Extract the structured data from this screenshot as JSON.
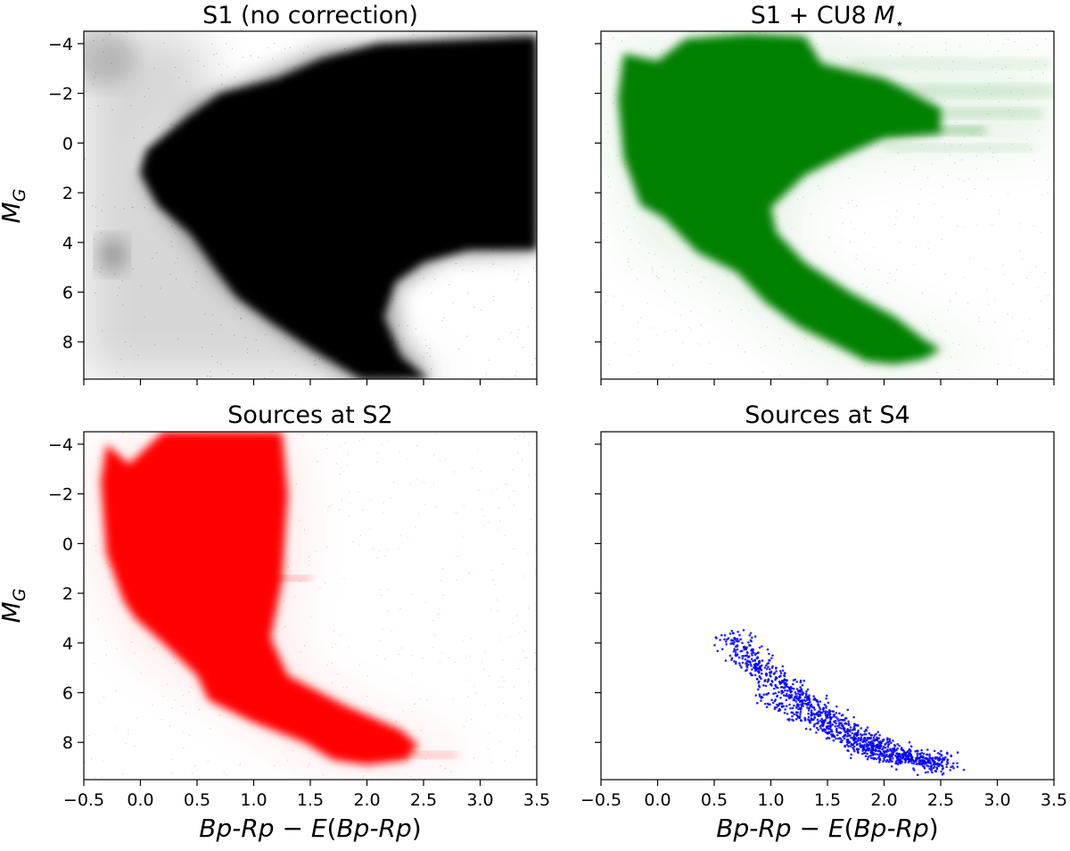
{
  "chart_data": [
    {
      "type": "scatter",
      "title": "S1 (no correction)",
      "ylabel": "M_G",
      "xlabel": "",
      "xlim": [
        -0.5,
        3.5
      ],
      "ylim": [
        9.5,
        -4.5
      ],
      "xticks": [
        "−0.5",
        "0.0",
        "0.5",
        "1.0",
        "1.5",
        "2.0",
        "2.5",
        "3.0",
        "3.5"
      ],
      "yticks": [
        "−4",
        "−2",
        "0",
        "2",
        "4",
        "6",
        "8"
      ],
      "show_xticklabels": false,
      "show_yticklabels": true,
      "color": "#000000",
      "grid": false,
      "density": {
        "halo": [
          [
            -0.5,
            -4.5
          ],
          [
            0.5,
            -4.5
          ],
          [
            0.6,
            -3.2
          ],
          [
            0.6,
            -1.5
          ],
          [
            0.3,
            -0.5
          ],
          [
            0.1,
            0.5
          ],
          [
            0.1,
            1.6
          ],
          [
            0.4,
            2.4
          ],
          [
            0.65,
            3.4
          ],
          [
            0.85,
            4.8
          ],
          [
            1.05,
            5.8
          ],
          [
            1.35,
            6.6
          ],
          [
            1.9,
            8.0
          ],
          [
            2.5,
            9.0
          ],
          [
            2.7,
            9.5
          ],
          [
            -0.5,
            9.5
          ]
        ],
        "core": [
          [
            0.4,
            -1.0
          ],
          [
            0.7,
            -2.0
          ],
          [
            1.2,
            -2.6
          ],
          [
            1.6,
            -3.4
          ],
          [
            2.1,
            -4.0
          ],
          [
            3.5,
            -4.3
          ],
          [
            3.5,
            4.3
          ],
          [
            2.9,
            4.3
          ],
          [
            2.5,
            4.8
          ],
          [
            2.25,
            5.6
          ],
          [
            2.15,
            7.0
          ],
          [
            2.3,
            8.6
          ],
          [
            2.55,
            9.5
          ],
          [
            1.95,
            9.5
          ],
          [
            1.55,
            8.4
          ],
          [
            1.15,
            7.2
          ],
          [
            0.85,
            6.2
          ],
          [
            0.65,
            5.0
          ],
          [
            0.45,
            3.7
          ],
          [
            0.15,
            2.5
          ],
          [
            0.0,
            1.2
          ],
          [
            0.05,
            0.3
          ]
        ],
        "core_soft": [
          [
            0.2,
            0.0
          ],
          [
            0.45,
            -1.6
          ],
          [
            0.9,
            -2.4
          ],
          [
            1.6,
            -3.8
          ],
          [
            3.5,
            -4.5
          ],
          [
            3.5,
            4.4
          ],
          [
            2.7,
            4.6
          ],
          [
            2.25,
            5.9
          ],
          [
            2.3,
            8.0
          ],
          [
            2.6,
            9.5
          ],
          [
            1.85,
            9.5
          ],
          [
            1.25,
            7.6
          ],
          [
            0.75,
            5.9
          ],
          [
            0.5,
            4.4
          ],
          [
            0.25,
            3.0
          ],
          [
            0.0,
            1.5
          ]
        ],
        "blobs": [
          {
            "cx": -0.25,
            "cy": 4.5,
            "rx": 0.12,
            "ry": 0.7,
            "alpha": 0.35
          },
          {
            "cx": -0.35,
            "cy": -3.5,
            "rx": 0.3,
            "ry": 1.2,
            "alpha": 0.18
          }
        ]
      }
    },
    {
      "type": "scatter",
      "title": "S1 + CU8",
      "title_symbol": "M",
      "title_subscript": "⋆",
      "ylabel": "",
      "xlabel": "",
      "xlim": [
        -0.5,
        3.5
      ],
      "ylim": [
        9.5,
        -4.5
      ],
      "xticks": [
        "−0.5",
        "0.0",
        "0.5",
        "1.0",
        "1.5",
        "2.0",
        "2.5",
        "3.0",
        "3.5"
      ],
      "yticks": [
        "−4",
        "−2",
        "0",
        "2",
        "4",
        "6",
        "8"
      ],
      "show_xticklabels": false,
      "show_yticklabels": false,
      "color": "#008000",
      "grid": false,
      "density": {
        "halo": [
          [
            -0.45,
            -3.5
          ],
          [
            -0.3,
            -4.0
          ],
          [
            0.0,
            -4.4
          ],
          [
            1.0,
            -4.5
          ],
          [
            1.6,
            -4.5
          ],
          [
            2.2,
            -3.7
          ],
          [
            3.5,
            -3.0
          ],
          [
            3.5,
            0.2
          ],
          [
            2.6,
            0.3
          ],
          [
            1.9,
            0.8
          ],
          [
            1.45,
            1.3
          ],
          [
            1.25,
            2.6
          ],
          [
            1.25,
            4.6
          ],
          [
            1.6,
            5.6
          ],
          [
            1.95,
            6.6
          ],
          [
            2.5,
            7.6
          ],
          [
            2.9,
            8.2
          ],
          [
            2.8,
            8.8
          ],
          [
            2.2,
            9.1
          ],
          [
            1.8,
            9.3
          ],
          [
            1.4,
            8.8
          ],
          [
            1.0,
            7.5
          ],
          [
            0.5,
            5.8
          ],
          [
            -0.2,
            4.3
          ],
          [
            -0.45,
            0.5
          ]
        ],
        "core": [
          [
            -0.3,
            -3.6
          ],
          [
            0.0,
            -3.3
          ],
          [
            0.25,
            -4.2
          ],
          [
            0.8,
            -4.4
          ],
          [
            1.3,
            -4.3
          ],
          [
            1.45,
            -3.2
          ],
          [
            2.0,
            -2.6
          ],
          [
            2.5,
            -1.4
          ],
          [
            2.5,
            -0.4
          ],
          [
            2.0,
            -0.2
          ],
          [
            1.65,
            0.5
          ],
          [
            1.3,
            1.3
          ],
          [
            1.0,
            2.6
          ],
          [
            1.05,
            3.6
          ],
          [
            1.3,
            4.8
          ],
          [
            1.7,
            6.0
          ],
          [
            2.1,
            7.0
          ],
          [
            2.35,
            7.9
          ],
          [
            2.5,
            8.3
          ],
          [
            2.35,
            8.7
          ],
          [
            2.1,
            8.9
          ],
          [
            1.85,
            8.8
          ],
          [
            1.6,
            8.2
          ],
          [
            1.25,
            7.4
          ],
          [
            0.95,
            6.4
          ],
          [
            0.7,
            5.2
          ],
          [
            0.35,
            4.4
          ],
          [
            0.2,
            3.7
          ],
          [
            0.05,
            3.0
          ],
          [
            -0.15,
            2.5
          ],
          [
            -0.3,
            0.6
          ],
          [
            -0.35,
            -1.8
          ]
        ],
        "streaks": [
          {
            "x0": 1.5,
            "x1": 3.5,
            "y": -2.1,
            "h": 0.5,
            "alpha": 0.12
          },
          {
            "x0": 1.6,
            "x1": 3.4,
            "y": -1.2,
            "h": 0.4,
            "alpha": 0.14
          },
          {
            "x0": 1.5,
            "x1": 2.9,
            "y": -0.5,
            "h": 0.35,
            "alpha": 0.3
          },
          {
            "x0": 2.0,
            "x1": 3.3,
            "y": 0.2,
            "h": 0.3,
            "alpha": 0.12
          },
          {
            "x0": 1.7,
            "x1": 3.5,
            "y": -3.2,
            "h": 0.4,
            "alpha": 0.08
          }
        ]
      }
    },
    {
      "type": "scatter",
      "title": "Sources at S2",
      "ylabel": "M_G",
      "xlabel": "Bp-Rp − E(Bp-Rp)",
      "xlim": [
        -0.5,
        3.5
      ],
      "ylim": [
        9.5,
        -4.5
      ],
      "xticks": [
        "−0.5",
        "0.0",
        "0.5",
        "1.0",
        "1.5",
        "2.0",
        "2.5",
        "3.0",
        "3.5"
      ],
      "yticks": [
        "−4",
        "−2",
        "0",
        "2",
        "4",
        "6",
        "8"
      ],
      "show_xticklabels": true,
      "show_yticklabels": true,
      "color": "#ff0000",
      "grid": false,
      "density": {
        "halo": [
          [
            -0.45,
            -3.6
          ],
          [
            0.0,
            -4.2
          ],
          [
            0.3,
            -4.5
          ],
          [
            1.35,
            -4.5
          ],
          [
            1.45,
            -2.0
          ],
          [
            1.4,
            1.5
          ],
          [
            1.3,
            3.5
          ],
          [
            1.5,
            5.4
          ],
          [
            2.0,
            6.7
          ],
          [
            2.6,
            7.8
          ],
          [
            2.9,
            8.6
          ],
          [
            2.7,
            9.0
          ],
          [
            2.1,
            9.2
          ],
          [
            1.6,
            9.0
          ],
          [
            1.2,
            8.0
          ],
          [
            0.6,
            6.2
          ],
          [
            0.0,
            4.5
          ],
          [
            -0.4,
            1.5
          ]
        ],
        "core": [
          [
            -0.3,
            -4.0
          ],
          [
            -0.1,
            -3.2
          ],
          [
            0.2,
            -4.5
          ],
          [
            1.25,
            -4.5
          ],
          [
            1.3,
            -2.0
          ],
          [
            1.25,
            1.5
          ],
          [
            1.15,
            3.8
          ],
          [
            1.3,
            5.3
          ],
          [
            1.8,
            6.5
          ],
          [
            2.3,
            7.5
          ],
          [
            2.45,
            8.1
          ],
          [
            2.35,
            8.7
          ],
          [
            2.0,
            8.9
          ],
          [
            1.7,
            8.7
          ],
          [
            1.45,
            8.0
          ],
          [
            1.0,
            7.2
          ],
          [
            0.6,
            6.3
          ],
          [
            0.5,
            5.3
          ],
          [
            0.2,
            4.0
          ],
          [
            -0.05,
            3.0
          ],
          [
            -0.15,
            2.3
          ],
          [
            -0.3,
            0.4
          ],
          [
            -0.35,
            -2.5
          ]
        ],
        "streaks": [
          {
            "x0": 1.8,
            "x1": 2.8,
            "y": 8.5,
            "h": 0.25,
            "alpha": 0.25
          },
          {
            "x0": 1.1,
            "x1": 1.5,
            "y": 1.4,
            "h": 0.2,
            "alpha": 0.35
          }
        ]
      }
    },
    {
      "type": "scatter",
      "title": "Sources at S4",
      "ylabel": "",
      "xlabel": "Bp-Rp − E(Bp-Rp)",
      "xlim": [
        -0.5,
        3.5
      ],
      "ylim": [
        9.5,
        -4.5
      ],
      "xticks": [
        "−0.5",
        "0.0",
        "0.5",
        "1.0",
        "1.5",
        "2.0",
        "2.5",
        "3.0",
        "3.5"
      ],
      "yticks": [
        "−4",
        "−2",
        "0",
        "2",
        "4",
        "6",
        "8"
      ],
      "show_xticklabels": true,
      "show_yticklabels": false,
      "color": "#0000ff",
      "grid": false,
      "points": {
        "n": 1300,
        "seed": 7,
        "main_sequence": [
          [
            0.65,
            3.7
          ],
          [
            0.9,
            5.0
          ],
          [
            1.2,
            6.1
          ],
          [
            1.5,
            7.0
          ],
          [
            1.8,
            7.9
          ],
          [
            2.0,
            8.4
          ],
          [
            2.3,
            8.7
          ],
          [
            2.55,
            8.8
          ]
        ],
        "binary_sequence": [
          [
            0.85,
            6.0
          ],
          [
            1.2,
            6.9
          ],
          [
            1.55,
            7.7
          ],
          [
            1.85,
            8.4
          ]
        ],
        "scatter_sigma": 0.22,
        "binary_fraction": 0.12
      }
    }
  ]
}
